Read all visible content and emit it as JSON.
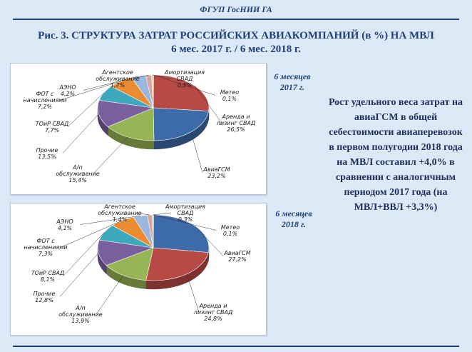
{
  "header": {
    "org": "ФГУП ГосНИИ ГА"
  },
  "title": {
    "line1": "Рис. 3. СТРУКТУРА ЗАТРАТ РОССИЙСКИХ АВИАКОМПАНИЙ (в %) НА МВЛ",
    "line2": "6 мес. 2017 г. / 6 мес. 2018 г."
  },
  "periods": {
    "top": {
      "line1": "6 месяцев",
      "line2": "2017 г."
    },
    "bottom": {
      "line1": "6 месяцев",
      "line2": "2018 г."
    }
  },
  "note": "Рост удельного веса затрат на авиаГСМ в общей себестоимости авиаперевозок в первом полугодии 2018 года на МВЛ составил +4,0% в сравнении с аналогичным периодом 2017 года (на МВЛ+ВВЛ +3,3%)",
  "colors": {
    "Метео": "#4a6fa5",
    "АвиаГСМ": "#3d6aa8",
    "Аренда и лизинг СВАД": "#b84a45",
    "А/п обслуживание": "#97b456",
    "Прочие": "#7a5e9e",
    "ТОиР СВАД": "#3ea8bd",
    "ФОТ с начислениями": "#ec8c32",
    "АЭНО": "#9ab8de",
    "Агентское обслуживание": "#d7a3a0",
    "Амортизация СВАД": "#c8d9a0"
  },
  "chart_data": [
    {
      "type": "pie",
      "title": "6 месяцев 2017 г.",
      "slices": [
        {
          "name": "Метео",
          "value": 0.1,
          "label": [
            "Метео",
            "0,1%"
          ]
        },
        {
          "name": "Аренда и лизинг СВАД",
          "value": 26.5,
          "label": [
            "Аренда и",
            "лизинг СВАД",
            "26,5%"
          ]
        },
        {
          "name": "АвиаГСМ",
          "value": 23.2,
          "label": [
            "АвиаГСМ",
            "23,2%"
          ]
        },
        {
          "name": "А/п обслуживание",
          "value": 15.4,
          "label": [
            "А/п",
            "обслуживание",
            "15,4%"
          ]
        },
        {
          "name": "Прочие",
          "value": 13.5,
          "label": [
            "Прочие",
            "13,5%"
          ]
        },
        {
          "name": "ТОиР СВАД",
          "value": 7.7,
          "label": [
            "ТОиР СВАД",
            "7,7%"
          ]
        },
        {
          "name": "ФОТ с начислениями",
          "value": 7.2,
          "label": [
            "ФОТ с",
            "начислениями",
            "7,2%"
          ]
        },
        {
          "name": "АЭНО",
          "value": 4.2,
          "label": [
            "АЭНО",
            "4,2%"
          ]
        },
        {
          "name": "Агентское обслуживание",
          "value": 1.7,
          "label": [
            "Агентское",
            "обслуживание",
            "1,7%"
          ]
        },
        {
          "name": "Амортизация СВАД",
          "value": 0.5,
          "label": [
            "Амортизация",
            "СВАД",
            "0,5%"
          ]
        }
      ]
    },
    {
      "type": "pie",
      "title": "6 месяцев 2018 г.",
      "slices": [
        {
          "name": "Метео",
          "value": 0.1,
          "label": [
            "Метео",
            "0,1%"
          ]
        },
        {
          "name": "АвиаГСМ",
          "value": 27.2,
          "label": [
            "АвиаГСМ",
            "27,2%"
          ]
        },
        {
          "name": "Аренда и лизинг СВАД",
          "value": 24.8,
          "label": [
            "Аренда и",
            "лизинг СВАД",
            "24,8%"
          ]
        },
        {
          "name": "А/п обслуживание",
          "value": 13.9,
          "label": [
            "А/п",
            "обслуживание",
            "13,9%"
          ]
        },
        {
          "name": "Прочие",
          "value": 12.8,
          "label": [
            "Прочие",
            "12,8%"
          ]
        },
        {
          "name": "ТОиР СВАД",
          "value": 8.1,
          "label": [
            "ТОиР СВАД",
            "8,1%"
          ]
        },
        {
          "name": "ФОТ с начислениями",
          "value": 7.3,
          "label": [
            "ФОТ с",
            "начислениями",
            "7,3%"
          ]
        },
        {
          "name": "АЭНО",
          "value": 4.1,
          "label": [
            "АЭНО",
            "4,1%"
          ]
        },
        {
          "name": "Агентское обслуживание",
          "value": 1.4,
          "label": [
            "Агентское",
            "обслуживание",
            "1,4%"
          ]
        },
        {
          "name": "Амортизация СВАД",
          "value": 0.3,
          "label": [
            "Амортизация",
            "СВАД",
            "0,3%"
          ]
        }
      ]
    }
  ]
}
